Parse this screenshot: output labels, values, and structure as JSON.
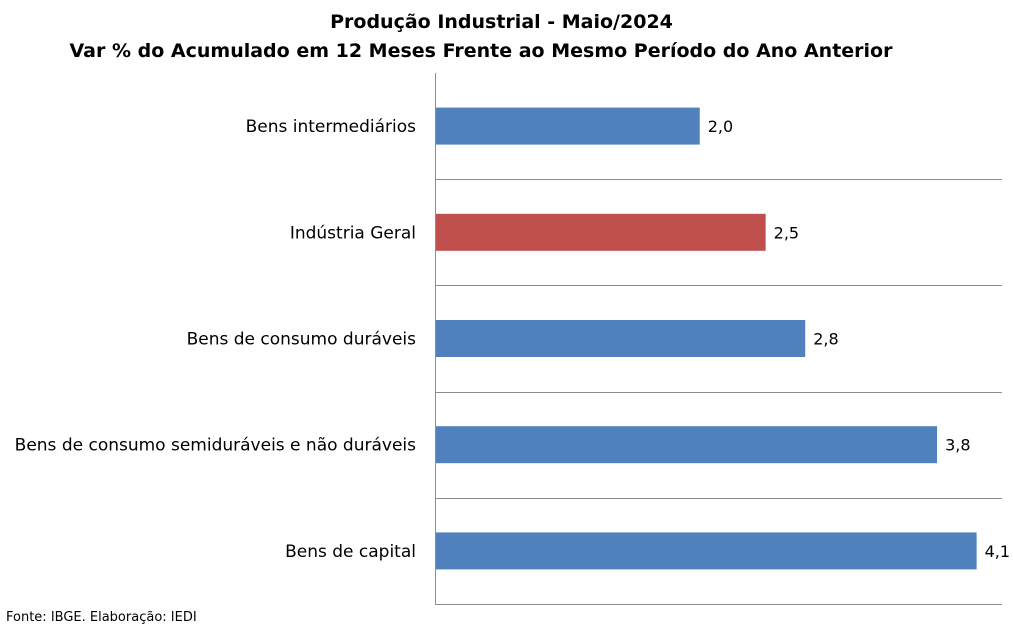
{
  "chart_data": {
    "type": "bar",
    "orientation": "horizontal",
    "title": "Produção Industrial - Maio/2024",
    "subtitle": "Var % do Acumulado em 12 Meses Frente ao Mesmo Período do Ano Anterior",
    "categories": [
      "Bens intermediários",
      "Indústria Geral",
      "Bens de consumo duráveis",
      "Bens de consumo semiduráveis e não duráveis",
      "Bens de capital"
    ],
    "values": [
      2.0,
      2.5,
      2.8,
      3.8,
      4.1
    ],
    "value_labels": [
      "2,0",
      "2,5",
      "2,8",
      "3,8",
      "4,1"
    ],
    "colors": [
      "#4F81BD",
      "#C0504D",
      "#4F81BD",
      "#4F81BD",
      "#4F81BD"
    ],
    "xlim": [
      0,
      4.3
    ],
    "grid": "horizontal separators between categories",
    "legend": "none"
  },
  "source": "Fonte: IBGE. Elaboração: IEDI"
}
